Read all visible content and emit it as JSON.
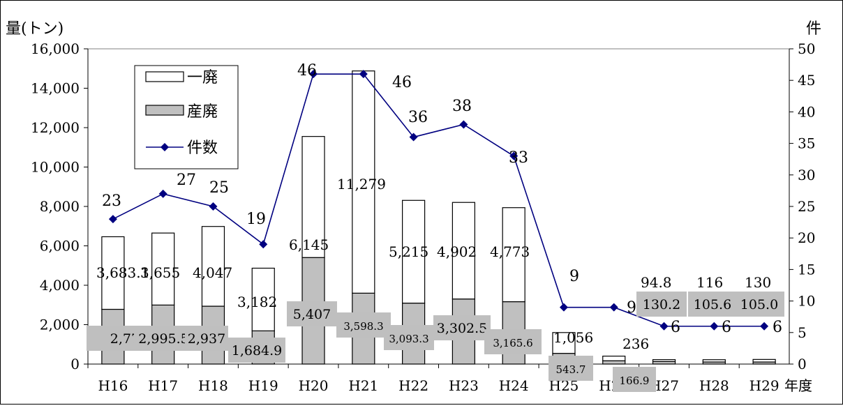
{
  "chart_data": {
    "type": "bar",
    "stacked": true,
    "categories": [
      "H16",
      "H17",
      "H18",
      "H19",
      "H20",
      "H21",
      "H22",
      "H23",
      "H24",
      "H25",
      "H26",
      "H27",
      "H28",
      "H29"
    ],
    "x_unit_label": "年度",
    "y_left_label": "量(トン)",
    "y_right_label": "件",
    "y_left_range": [
      0,
      16000
    ],
    "y_right_range": [
      0,
      50
    ],
    "y_left_ticks": [
      "0",
      "2,000",
      "4,000",
      "6,000",
      "8,000",
      "10,000",
      "12,000",
      "14,000",
      "16,000"
    ],
    "y_right_ticks": [
      "0",
      "5",
      "10",
      "15",
      "20",
      "25",
      "30",
      "35",
      "40",
      "45",
      "50"
    ],
    "grid": false,
    "legend_position": "top-left",
    "series": [
      {
        "name": "一廃",
        "kind": "bar",
        "axis": "left",
        "color": "#ffffff",
        "values": [
          3683.1,
          3655,
          4047,
          3182,
          6145,
          11279,
          5215,
          4902,
          4773,
          1056,
          236,
          94.8,
          116,
          130
        ],
        "value_labels": [
          "3,683.1",
          "3,655",
          "4,047",
          "3,182",
          "6,145",
          "11,279",
          "5,215",
          "4,902",
          "4,773",
          "1,056",
          "236",
          "94.8",
          "116",
          "130"
        ]
      },
      {
        "name": "産廃",
        "kind": "bar",
        "axis": "left",
        "color": "#c0c0c0",
        "values": [
          2779,
          2995.5,
          2937,
          1684.9,
          5407,
          3598.3,
          3093.3,
          3302.5,
          3165.6,
          543.7,
          166.9,
          130.2,
          105.6,
          105.0
        ],
        "value_labels": [
          "2,779",
          "2,995.5",
          "2,937",
          "1,684.9",
          "5,407",
          "3,598.3",
          "3,093.3",
          "3,302.5",
          "3,165.6",
          "543.7",
          "166.9",
          "130.2",
          "105.6",
          "105.0"
        ]
      },
      {
        "name": "件数",
        "kind": "line",
        "axis": "right",
        "color": "#000080",
        "marker": "diamond",
        "values": [
          23,
          27,
          25,
          19,
          46,
          46,
          36,
          38,
          33,
          9,
          9,
          6,
          6,
          6
        ],
        "value_labels": [
          "23",
          "27",
          "25",
          "19",
          "46",
          "46",
          "36",
          "38",
          "33",
          "9",
          "9",
          "6",
          "6",
          "6"
        ]
      }
    ]
  }
}
